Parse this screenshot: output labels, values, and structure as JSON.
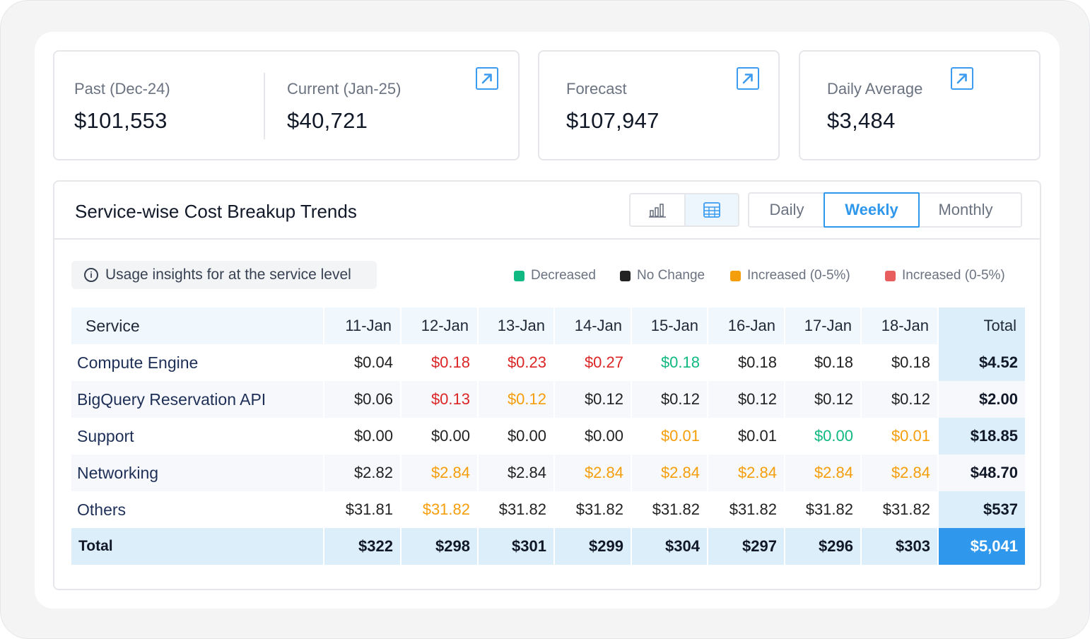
{
  "colors": {
    "accent": "#2f97ec",
    "decreased": "#10b981",
    "no_change": "#222222",
    "increased_small": "#f59e0b",
    "increased_large": "#dc2626",
    "increased_large_legend": "#e85d5d"
  },
  "summary": {
    "past": {
      "label": "Past  (Dec-24)",
      "value": "$101,553"
    },
    "current": {
      "label": "Current  (Jan-25)",
      "value": "$40,721"
    },
    "forecast": {
      "label": "Forecast",
      "value": "$107,947"
    },
    "daily_average": {
      "label": "Daily Average",
      "value": "$3,484"
    },
    "link_icon": "external-link-icon"
  },
  "trends": {
    "title": "Service-wise Cost Breakup Trends",
    "view_toggle": [
      {
        "icon": "bar-chart-icon",
        "active": false
      },
      {
        "icon": "table-grid-icon",
        "active": true
      }
    ],
    "periods": [
      "Daily",
      "Weekly",
      "Monthly"
    ],
    "selected_period": "Weekly",
    "insight": {
      "icon": "info-icon",
      "text": "Usage insights for at the service level"
    },
    "legend": [
      {
        "label": "Decreased",
        "color": "#10b981"
      },
      {
        "label": "No Change",
        "color": "#222222"
      },
      {
        "label": "Increased (0-5%)",
        "color": "#f59e0b"
      },
      {
        "label": "Increased (0-5%)",
        "color": "#e85d5d"
      }
    ],
    "columns": [
      "Service",
      "11-Jan",
      "12-Jan",
      "13-Jan",
      "14-Jan",
      "15-Jan",
      "16-Jan",
      "17-Jan",
      "18-Jan",
      "Total"
    ],
    "rows": [
      {
        "service": "Compute Engine",
        "cells": [
          {
            "v": "$0.04",
            "s": "none"
          },
          {
            "v": "$0.18",
            "s": "up_high"
          },
          {
            "v": "$0.23",
            "s": "up_high"
          },
          {
            "v": "$0.27",
            "s": "up_high"
          },
          {
            "v": "$0.18",
            "s": "down"
          },
          {
            "v": "$0.18",
            "s": "none"
          },
          {
            "v": "$0.18",
            "s": "none"
          },
          {
            "v": "$0.18",
            "s": "none"
          }
        ],
        "total": "$4.52"
      },
      {
        "service": "BigQuery Reservation API",
        "cells": [
          {
            "v": "$0.06",
            "s": "none"
          },
          {
            "v": "$0.13",
            "s": "up_high"
          },
          {
            "v": "$0.12",
            "s": "up_low"
          },
          {
            "v": "$0.12",
            "s": "none"
          },
          {
            "v": "$0.12",
            "s": "none"
          },
          {
            "v": "$0.12",
            "s": "none"
          },
          {
            "v": "$0.12",
            "s": "none"
          },
          {
            "v": "$0.12",
            "s": "none"
          }
        ],
        "total": "$2.00"
      },
      {
        "service": "Support",
        "cells": [
          {
            "v": "$0.00",
            "s": "none"
          },
          {
            "v": "$0.00",
            "s": "none"
          },
          {
            "v": "$0.00",
            "s": "none"
          },
          {
            "v": "$0.00",
            "s": "none"
          },
          {
            "v": "$0.01",
            "s": "up_low"
          },
          {
            "v": "$0.01",
            "s": "none"
          },
          {
            "v": "$0.00",
            "s": "down"
          },
          {
            "v": "$0.01",
            "s": "up_low"
          }
        ],
        "total": "$18.85"
      },
      {
        "service": "Networking",
        "cells": [
          {
            "v": "$2.82",
            "s": "none"
          },
          {
            "v": "$2.84",
            "s": "up_low"
          },
          {
            "v": "$2.84",
            "s": "none"
          },
          {
            "v": "$2.84",
            "s": "up_low"
          },
          {
            "v": "$2.84",
            "s": "up_low"
          },
          {
            "v": "$2.84",
            "s": "up_low"
          },
          {
            "v": "$2.84",
            "s": "up_low"
          },
          {
            "v": "$2.84",
            "s": "up_low"
          }
        ],
        "total": "$48.70"
      },
      {
        "service": "Others",
        "cells": [
          {
            "v": "$31.81",
            "s": "none"
          },
          {
            "v": "$31.82",
            "s": "up_low"
          },
          {
            "v": "$31.82",
            "s": "none"
          },
          {
            "v": "$31.82",
            "s": "none"
          },
          {
            "v": "$31.82",
            "s": "none"
          },
          {
            "v": "$31.82",
            "s": "none"
          },
          {
            "v": "$31.82",
            "s": "none"
          },
          {
            "v": "$31.82",
            "s": "none"
          }
        ],
        "total": "$537"
      }
    ],
    "totals_row": {
      "label": "Total",
      "values": [
        "$322",
        "$298",
        "$301",
        "$299",
        "$304",
        "$297",
        "$296",
        "$303"
      ],
      "grand_total": "$5,041"
    }
  }
}
